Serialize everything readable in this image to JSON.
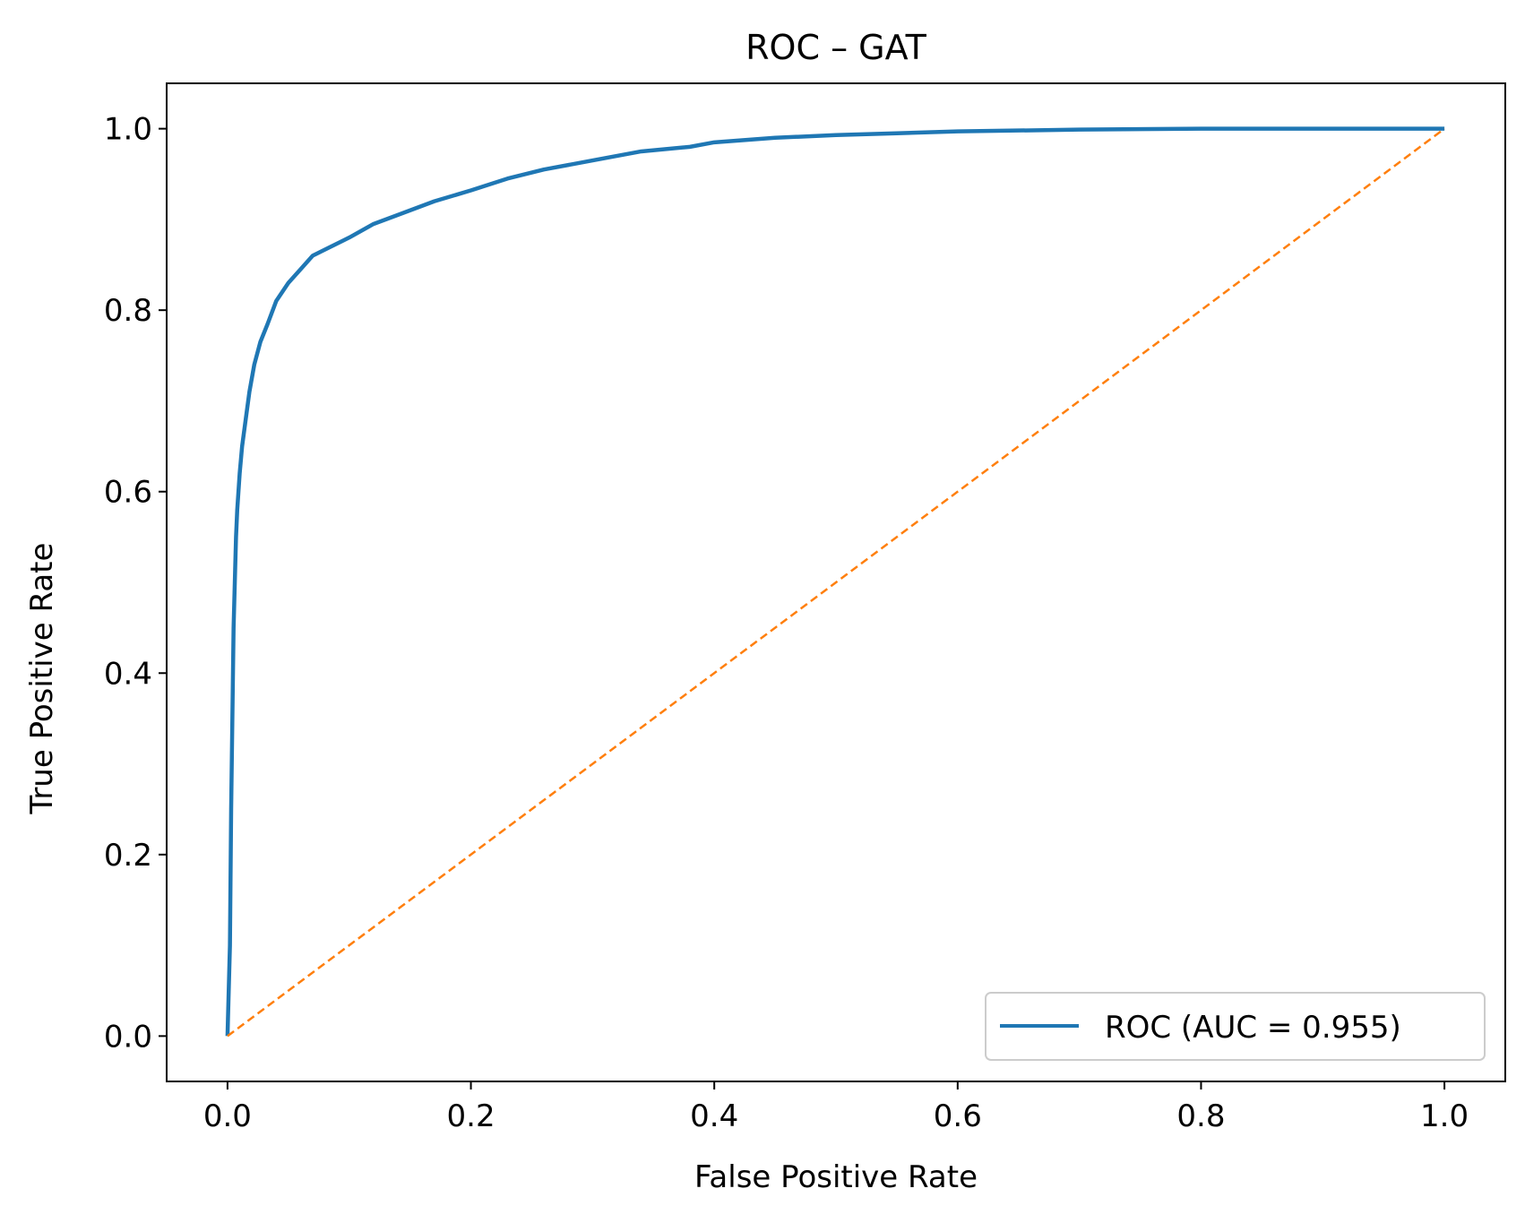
{
  "chart_data": {
    "type": "line",
    "title": "ROC – GAT",
    "xlabel": "False Positive Rate",
    "ylabel": "True Positive Rate",
    "xlim": [
      -0.05,
      1.05
    ],
    "ylim": [
      -0.05,
      1.05
    ],
    "xticks": [
      0.0,
      0.2,
      0.4,
      0.6,
      0.8,
      1.0
    ],
    "yticks": [
      0.0,
      0.2,
      0.4,
      0.6,
      0.8,
      1.0
    ],
    "xtick_labels": [
      "0.0",
      "0.2",
      "0.4",
      "0.6",
      "0.8",
      "1.0"
    ],
    "ytick_labels": [
      "0.0",
      "0.2",
      "0.4",
      "0.6",
      "0.8",
      "1.0"
    ],
    "grid": false,
    "legend_position": "lower-right",
    "series": [
      {
        "name": "ROC (AUC = 0.955)",
        "style": "solid",
        "color": "#1f77b4",
        "x": [
          0.0,
          0.002,
          0.003,
          0.004,
          0.005,
          0.006,
          0.007,
          0.008,
          0.01,
          0.012,
          0.015,
          0.018,
          0.022,
          0.027,
          0.033,
          0.04,
          0.05,
          0.06,
          0.07,
          0.085,
          0.1,
          0.12,
          0.14,
          0.17,
          0.2,
          0.23,
          0.26,
          0.3,
          0.34,
          0.38,
          0.4,
          0.45,
          0.5,
          0.55,
          0.6,
          0.7,
          0.8,
          0.9,
          1.0
        ],
        "y": [
          0.0,
          0.1,
          0.25,
          0.35,
          0.45,
          0.5,
          0.55,
          0.58,
          0.62,
          0.65,
          0.68,
          0.71,
          0.74,
          0.765,
          0.785,
          0.81,
          0.83,
          0.845,
          0.86,
          0.87,
          0.88,
          0.895,
          0.905,
          0.92,
          0.932,
          0.945,
          0.955,
          0.965,
          0.975,
          0.98,
          0.985,
          0.99,
          0.993,
          0.995,
          0.997,
          0.999,
          1.0,
          1.0,
          1.0
        ]
      },
      {
        "name": "",
        "style": "dashed",
        "color": "#ff7f0e",
        "x": [
          0.0,
          1.0
        ],
        "y": [
          0.0,
          1.0
        ]
      }
    ]
  }
}
